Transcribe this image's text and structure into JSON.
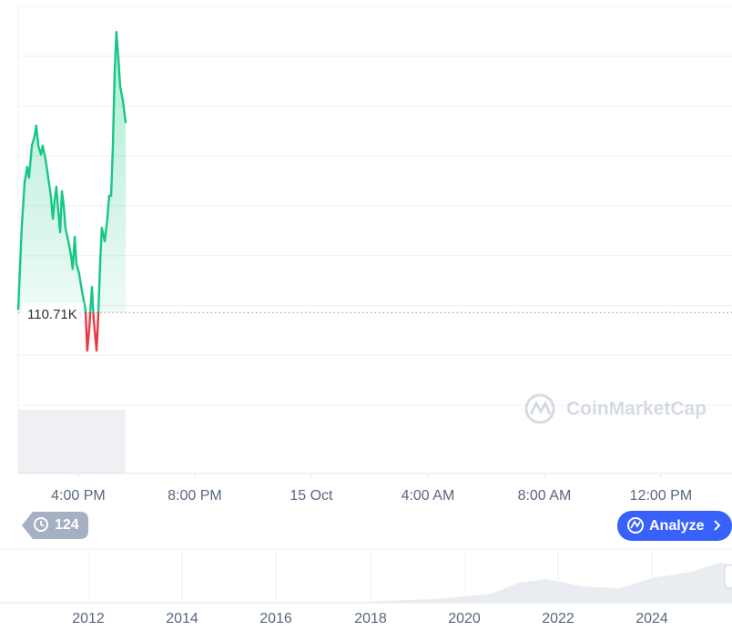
{
  "chart_data": {
    "type": "line",
    "x": [
      13.94,
      14.06,
      14.16,
      14.25,
      14.31,
      14.41,
      14.5,
      14.56,
      14.63,
      14.72,
      14.78,
      14.88,
      14.97,
      15.06,
      15.13,
      15.19,
      15.25,
      15.31,
      15.38,
      15.44,
      15.5,
      15.56,
      15.66,
      15.75,
      15.81,
      15.88,
      15.94,
      16.03,
      16.13,
      16.19,
      16.25,
      16.31,
      16.38,
      16.47,
      16.53,
      16.63,
      16.69,
      16.75,
      16.81,
      16.91,
      17.0,
      17.06,
      17.13,
      17.19,
      17.25,
      17.31,
      17.38,
      17.44,
      17.53,
      17.63
    ],
    "values": [
      110.76,
      112.4,
      113.31,
      113.62,
      113.4,
      114.04,
      114.22,
      114.44,
      114.04,
      113.86,
      114.04,
      113.76,
      113.4,
      113.04,
      112.58,
      112.95,
      113.22,
      112.76,
      112.31,
      113.13,
      112.86,
      112.4,
      112.13,
      111.86,
      111.58,
      112.22,
      111.67,
      111.49,
      111.13,
      110.95,
      110.76,
      109.95,
      110.4,
      111.22,
      110.58,
      109.95,
      110.67,
      111.67,
      112.4,
      112.13,
      112.58,
      113.04,
      113.04,
      114.04,
      115.49,
      116.31,
      115.77,
      115.22,
      114.95,
      114.49
    ],
    "up_color": "#16c784",
    "down_color": "#ea3943",
    "reference": {
      "value": 110.71,
      "label": "110.71K"
    },
    "xlim": [
      13.94,
      38.44
    ],
    "ylim": [
      108.86,
      116.82
    ],
    "xticks": [
      {
        "value": 16,
        "label": "4:00 PM"
      },
      {
        "value": 20,
        "label": "8:00 PM"
      },
      {
        "value": 24,
        "label": "15 Oct"
      },
      {
        "value": 28,
        "label": "4:00 AM"
      },
      {
        "value": 32,
        "label": "8:00 AM"
      },
      {
        "value": 36,
        "label": "12:00 PM"
      }
    ],
    "watermark": "CoinMarketCap",
    "history_count": 124,
    "analyze_button": "Analyze",
    "navigator_years": [
      "2012",
      "2014",
      "2016",
      "2018",
      "2020",
      "2022",
      "2024"
    ]
  }
}
